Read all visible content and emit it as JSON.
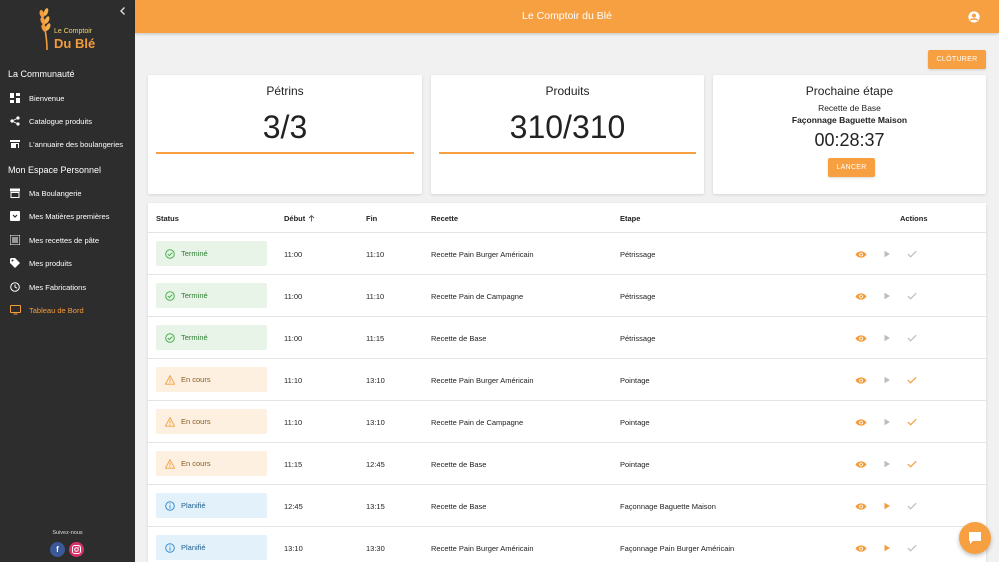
{
  "app": {
    "title": "Le Comptoir du Blé",
    "logo_line1": "Le Comptoir",
    "logo_line2": "Du Blé"
  },
  "colors": {
    "accent": "#f6a042",
    "sidebar": "#2d2d2d",
    "done": "#4caf50",
    "running": "#f39c3c",
    "planned": "#3b8fd1"
  },
  "sidebar": {
    "section1": "La Communauté",
    "section2": "Mon Espace Personnel",
    "items": [
      {
        "label": "Bienvenue",
        "icon": "dashboard-icon"
      },
      {
        "label": "Catalogue produits",
        "icon": "share-icon"
      },
      {
        "label": "L'annuaire des boulangeries",
        "icon": "store-icon"
      },
      {
        "label": "Ma Boulangerie",
        "icon": "storefront-icon"
      },
      {
        "label": "Mes Matières premières",
        "icon": "inventory-icon"
      },
      {
        "label": "Mes recettes de pâte",
        "icon": "list-icon"
      },
      {
        "label": "Mes produits",
        "icon": "tag-icon"
      },
      {
        "label": "Mes Fabrications",
        "icon": "clock-icon"
      },
      {
        "label": "Tableau de Bord",
        "icon": "monitor-icon"
      }
    ],
    "follow": "Suivez-nous"
  },
  "toolbar": {
    "close_label": "CLÔTURER"
  },
  "cards": {
    "petrins": {
      "title": "Pétrins",
      "value": "3/3",
      "progress": 1.0
    },
    "produits": {
      "title": "Produits",
      "value": "310/310",
      "progress": 1.0
    },
    "next": {
      "title": "Prochaine étape",
      "recipe": "Recette de Base",
      "step": "Façonnage Baguette Maison",
      "timer": "00:28:37",
      "launch_label": "LANCER"
    }
  },
  "table": {
    "headers": {
      "status": "Status",
      "debut": "Début",
      "fin": "Fin",
      "recette": "Recette",
      "etape": "Etape",
      "actions": "Actions"
    },
    "rows": [
      {
        "status": "Terminé",
        "kind": "done",
        "debut": "11:00",
        "fin": "11:10",
        "recette": "Recette Pain Burger Américain",
        "etape": "Pétrissage"
      },
      {
        "status": "Terminé",
        "kind": "done",
        "debut": "11:00",
        "fin": "11:10",
        "recette": "Recette Pain de Campagne",
        "etape": "Pétrissage"
      },
      {
        "status": "Terminé",
        "kind": "done",
        "debut": "11:00",
        "fin": "11:15",
        "recette": "Recette de Base",
        "etape": "Pétrissage"
      },
      {
        "status": "En cours",
        "kind": "run",
        "debut": "11:10",
        "fin": "13:10",
        "recette": "Recette Pain Burger Américain",
        "etape": "Pointage"
      },
      {
        "status": "En cours",
        "kind": "run",
        "debut": "11:10",
        "fin": "13:10",
        "recette": "Recette Pain de Campagne",
        "etape": "Pointage"
      },
      {
        "status": "En cours",
        "kind": "run",
        "debut": "11:15",
        "fin": "12:45",
        "recette": "Recette de Base",
        "etape": "Pointage"
      },
      {
        "status": "Planifié",
        "kind": "plan",
        "debut": "12:45",
        "fin": "13:15",
        "recette": "Recette de Base",
        "etape": "Façonnage Baguette Maison"
      },
      {
        "status": "Planifié",
        "kind": "plan",
        "debut": "13:10",
        "fin": "13:30",
        "recette": "Recette Pain Burger Américain",
        "etape": "Façonnage Pain Burger Américain"
      }
    ]
  }
}
